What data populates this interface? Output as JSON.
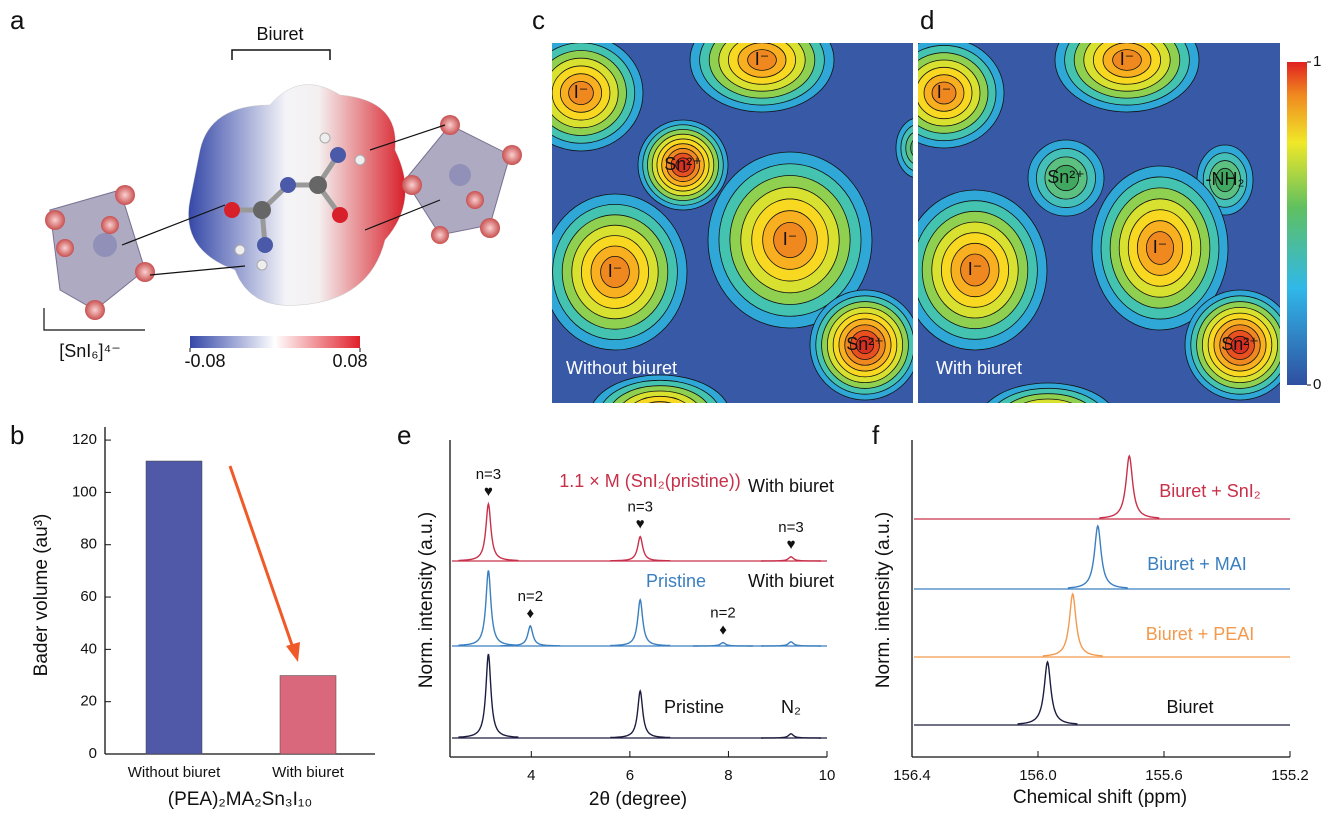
{
  "panel_labels": [
    "a",
    "b",
    "c",
    "d",
    "e",
    "f"
  ],
  "panel_a": {
    "molecule_label": "Biuret",
    "octahedron_label": "[SnI₆]⁴⁻",
    "colorbar_ticks": [
      -0.08,
      0.08
    ]
  },
  "panel_c": {
    "caption": "Without biuret",
    "site_labels": [
      "I⁻",
      "I⁻",
      "Sn²⁺",
      "I⁻",
      "I⁻",
      "Sn²⁺"
    ]
  },
  "panel_d": {
    "caption": "With biuret",
    "site_labels": [
      "I⁻",
      "I⁻",
      "Sn²⁺",
      "-NH₂",
      "I⁻",
      "I⁻",
      "Sn²⁺"
    ]
  },
  "density_colorbar": {
    "ticks": [
      0,
      1
    ]
  },
  "chart_data": [
    {
      "type": "bar",
      "categories": [
        "Without biuret",
        "With biuret"
      ],
      "values": [
        112,
        30
      ],
      "colors": [
        "#4f59a8",
        "#d9687c"
      ],
      "ylabel": "Bader volume (au³)",
      "xlabel": "(PEA)₂MA₂Sn₃I₁₀",
      "ylim": [
        0,
        125
      ],
      "yticks": [
        0,
        20,
        40,
        60,
        80,
        100,
        120
      ]
    },
    {
      "type": "spectrum",
      "xlabel": "2θ (degree)",
      "ylabel": "Norm. intensity (a.u.)",
      "xlim": [
        2.35,
        10
      ],
      "xticks": [
        4,
        6,
        8,
        10
      ],
      "series": [
        {
          "name": "Pristine",
          "label2": "N₂",
          "color": "#1d1d3f",
          "x": [
            3.13,
            6.21,
            9.27
          ],
          "values": [
            1,
            0.56,
            0.05
          ]
        },
        {
          "name": "Pristine",
          "label2": "With biuret",
          "color": "#3a7fc0",
          "x": [
            3.13,
            3.98,
            6.21,
            7.89,
            9.27
          ],
          "values": [
            0.9,
            0.24,
            0.55,
            0.04,
            0.05
          ],
          "annotations": [
            {
              "x": 3.98,
              "text": "n=2",
              "symbol": "♦"
            },
            {
              "x": 7.89,
              "text": "n=2",
              "symbol": "♦"
            }
          ]
        },
        {
          "name": "1.1 × M (SnI₂(pristine))",
          "label2": "With biuret",
          "color": "#c8304a",
          "x": [
            3.13,
            6.21,
            9.27
          ],
          "values": [
            0.68,
            0.29,
            0.05
          ],
          "annotations": [
            {
              "x": 3.13,
              "text": "n=3",
              "symbol": "♥"
            },
            {
              "x": 6.21,
              "text": "n=3",
              "symbol": "♥"
            },
            {
              "x": 9.27,
              "text": "n=3",
              "symbol": "♥"
            }
          ]
        }
      ]
    },
    {
      "type": "spectrum",
      "xlabel": "Chemical shift (ppm)",
      "ylabel": "Norm. intensity (a.u.)",
      "xlim": [
        156.4,
        155.2
      ],
      "xticks": [
        156.4,
        {
          "value": 156,
          "label": "156.0"
        },
        155.6,
        155.2
      ],
      "series": [
        {
          "name": "Biuret",
          "color": "#1d1d3f",
          "x": [
            155.97
          ],
          "values": [
            1
          ]
        },
        {
          "name": "Biuret + PEAI",
          "color": "#f39a4e",
          "x": [
            155.89
          ],
          "values": [
            1
          ]
        },
        {
          "name": "Biuret + MAI",
          "color": "#3a7fc0",
          "x": [
            155.81
          ],
          "values": [
            1
          ]
        },
        {
          "name": "Biuret + SnI₂",
          "color": "#c8304a",
          "x": [
            155.71
          ],
          "values": [
            1
          ]
        }
      ]
    }
  ]
}
